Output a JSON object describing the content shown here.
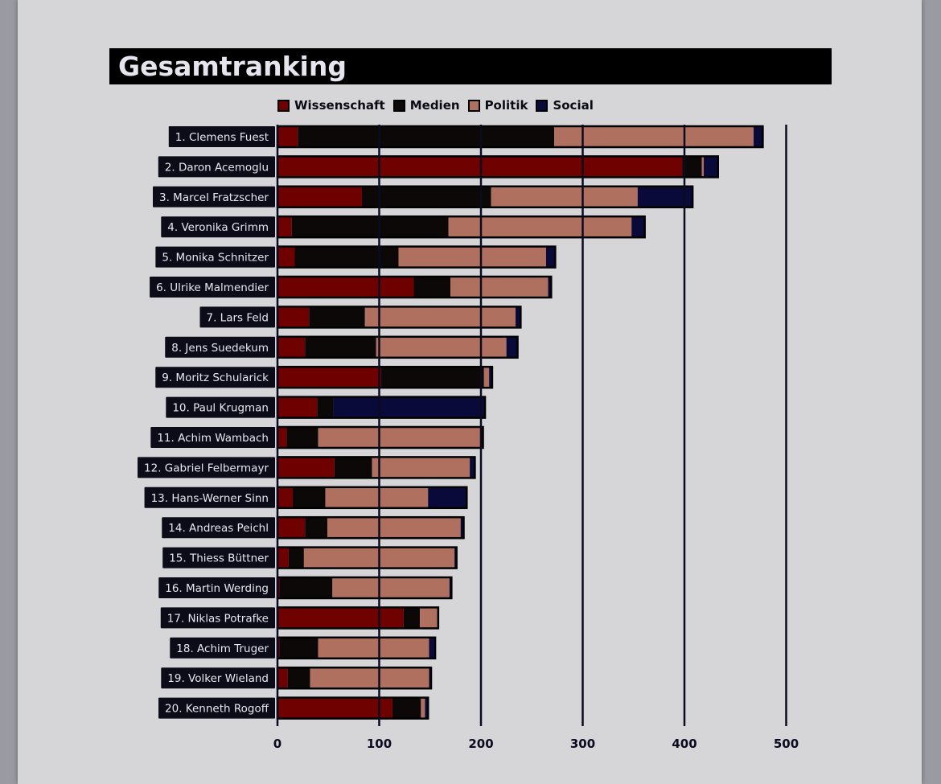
{
  "title": "Gesamtranking",
  "colors": {
    "Wissenschaft": "#6e0000",
    "Medien": "#0d0808",
    "Politik": "#b07060",
    "Social": "#0a0a3a",
    "gridline": "#0a0a20",
    "label_bg": "#0c0c18"
  },
  "legend": [
    {
      "label": "Wissenschaft"
    },
    {
      "label": "Medien"
    },
    {
      "label": "Politik"
    },
    {
      "label": "Social"
    }
  ],
  "chart_data": {
    "type": "bar",
    "orientation": "horizontal",
    "stacked": true,
    "title": "Gesamtranking",
    "xlim": [
      0,
      500
    ],
    "xticks": [
      0,
      100,
      200,
      300,
      400,
      500
    ],
    "grid": true,
    "legend_position": "top",
    "categories": [
      "1. Clemens Fuest",
      "2. Daron Acemoglu",
      "3. Marcel Fratzscher",
      "4. Veronika Grimm",
      "5. Monika Schnitzer",
      "6. Ulrike Malmendier",
      "7. Lars Feld",
      "8. Jens Suedekum",
      "9. Moritz Schularick",
      "10. Paul Krugman",
      "11. Achim Wambach",
      "12. Gabriel Felbermayr",
      "13. Hans-Werner Sinn",
      "14. Andreas Peichl",
      "15. Thiess Büttner",
      "16. Martin Werding",
      "17. Niklas Potrafke",
      "18. Achim Truger",
      "19. Volker Wieland",
      "20. Kenneth Rogoff"
    ],
    "series": [
      {
        "name": "Wissenschaft",
        "values": [
          20,
          398,
          83,
          14,
          17,
          134,
          31,
          27,
          102,
          39,
          9,
          56,
          15,
          27,
          11,
          2,
          124,
          2,
          10,
          113
        ]
      },
      {
        "name": "Medien",
        "values": [
          252,
          19,
          127,
          154,
          102,
          36,
          55,
          70,
          101,
          16,
          31,
          37,
          32,
          22,
          15,
          52,
          16,
          38,
          22,
          28
        ]
      },
      {
        "name": "Politik",
        "values": [
          196,
          2,
          144,
          180,
          145,
          96,
          148,
          128,
          5,
          0,
          160,
          96,
          101,
          131,
          148,
          115,
          17,
          109,
          117,
          4
        ]
      },
      {
        "name": "Social",
        "values": [
          9,
          14,
          54,
          13,
          9,
          3,
          5,
          11,
          3,
          149,
          2,
          5,
          38,
          3,
          2,
          2,
          1,
          6,
          2,
          3
        ]
      }
    ]
  }
}
